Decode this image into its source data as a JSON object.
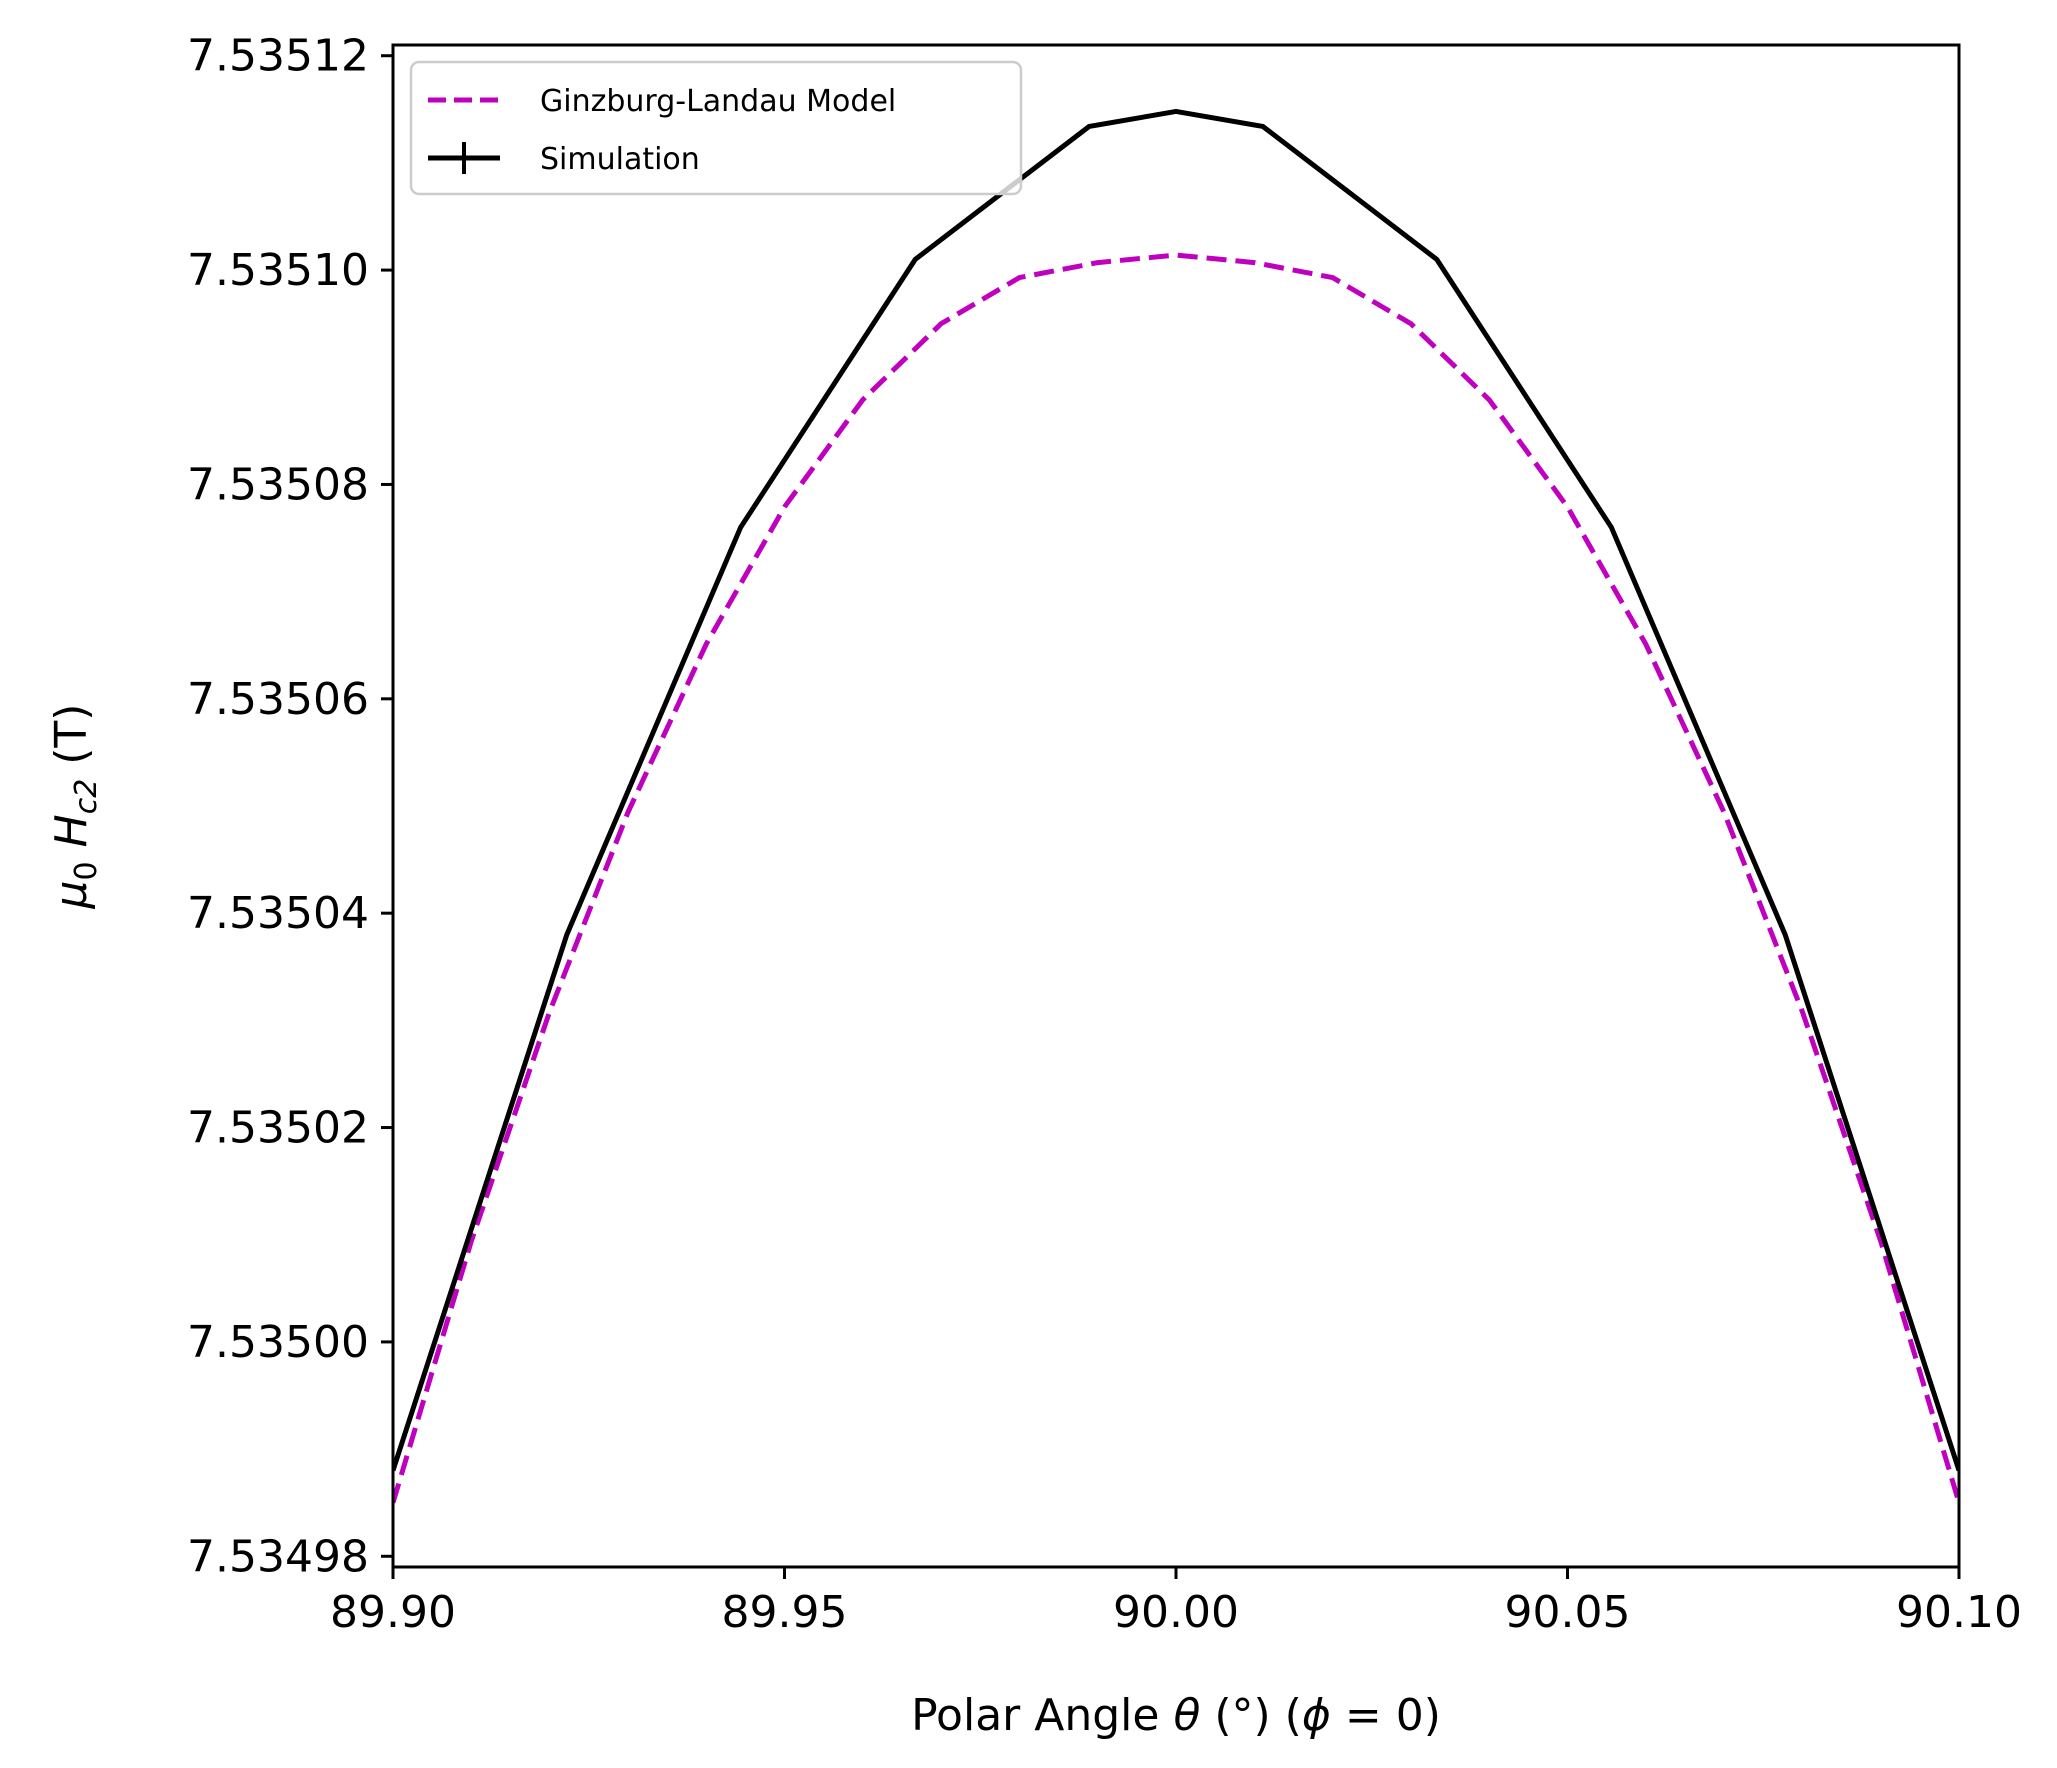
{
  "chart_data": {
    "type": "line",
    "title": "",
    "xlabel_parts": [
      "Polar Angle ",
      "θ",
      " (°) (",
      "ϕ",
      " = 0)"
    ],
    "ylabel_parts": [
      "μ",
      "0",
      " ",
      "H",
      "c2",
      " (T)"
    ],
    "xlim": [
      89.9,
      90.1
    ],
    "ylim": [
      7.534979,
      7.535121
    ],
    "x_ticks": [
      89.9,
      89.95,
      90.0,
      90.05,
      90.1
    ],
    "x_tick_labels": [
      "89.90",
      "89.95",
      "90.00",
      "90.05",
      "90.10"
    ],
    "y_ticks": [
      7.53498,
      7.535,
      7.53502,
      7.53504,
      7.53506,
      7.53508,
      7.5351,
      7.53512
    ],
    "y_tick_labels": [
      "7.53498",
      "7.53500",
      "7.53502",
      "7.53504",
      "7.53506",
      "7.53508",
      "7.53510",
      "7.53512"
    ],
    "legend_position": "top-left",
    "grid": false,
    "series": [
      {
        "name": "Ginzburg-Landau Model",
        "style": "dashed",
        "color": "#bf00bf",
        "x": [
          89.9,
          89.91,
          89.92,
          89.93,
          89.94,
          89.95,
          89.96,
          89.97,
          89.98,
          89.99,
          90.0,
          90.01,
          90.02,
          90.03,
          90.04,
          90.05,
          90.06,
          90.07,
          90.08,
          90.09,
          90.1
        ],
        "y": [
          7.534985,
          7.5350094,
          7.5350308,
          7.5350494,
          7.5350651,
          7.5350779,
          7.5350879,
          7.535095,
          7.5350993,
          7.5351007,
          7.5351014,
          7.5351007,
          7.5350993,
          7.535095,
          7.5350879,
          7.5350779,
          7.5350651,
          7.5350494,
          7.5350308,
          7.5350094,
          7.534985
        ]
      },
      {
        "name": "Simulation",
        "style": "solid",
        "color": "#000000",
        "x": [
          89.9,
          89.9222,
          89.9444,
          89.9667,
          89.9889,
          90.0,
          90.0111,
          90.0333,
          90.0556,
          90.0778,
          90.1
        ],
        "y": [
          7.534988,
          7.535038,
          7.535076,
          7.535101,
          7.5351134,
          7.5351148,
          7.5351134,
          7.535101,
          7.535076,
          7.535038,
          7.534988
        ]
      }
    ]
  }
}
